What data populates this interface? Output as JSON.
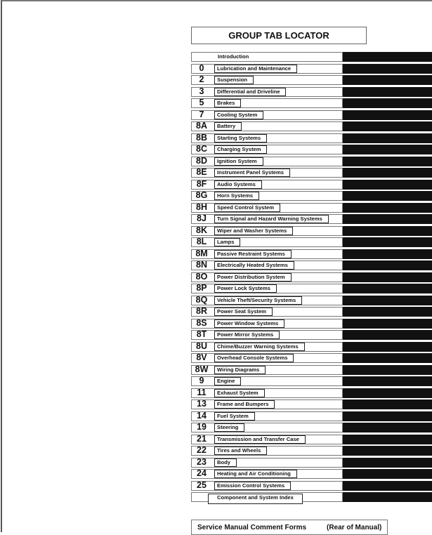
{
  "title": "GROUP TAB LOCATOR",
  "groups": [
    {
      "num": "",
      "label": "Introduction"
    },
    {
      "num": "0",
      "label": "Lubrication and Maintenance"
    },
    {
      "num": "2",
      "label": "Suspension"
    },
    {
      "num": "3",
      "label": "Differential and Driveline"
    },
    {
      "num": "5",
      "label": "Brakes"
    },
    {
      "num": "7",
      "label": "Cooling System"
    },
    {
      "num": "8A",
      "label": "Battery"
    },
    {
      "num": "8B",
      "label": "Starting Systems"
    },
    {
      "num": "8C",
      "label": "Charging System"
    },
    {
      "num": "8D",
      "label": "Ignition System"
    },
    {
      "num": "8E",
      "label": "Instrument Panel Systems"
    },
    {
      "num": "8F",
      "label": "Audio Systems"
    },
    {
      "num": "8G",
      "label": "Horn Systems"
    },
    {
      "num": "8H",
      "label": "Speed Control System"
    },
    {
      "num": "8J",
      "label": "Turn Signal and Hazard Warning Systems"
    },
    {
      "num": "8K",
      "label": "Wiper and Washer Systems"
    },
    {
      "num": "8L",
      "label": "Lamps"
    },
    {
      "num": "8M",
      "label": "Passive Restraint Systems"
    },
    {
      "num": "8N",
      "label": "Electrically Heated Systems"
    },
    {
      "num": "8O",
      "label": "Power Distribution System"
    },
    {
      "num": "8P",
      "label": "Power Lock Systems"
    },
    {
      "num": "8Q",
      "label": "Vehicle Theft/Security Systems"
    },
    {
      "num": "8R",
      "label": "Power Seat System"
    },
    {
      "num": "8S",
      "label": "Power Window Systems"
    },
    {
      "num": "8T",
      "label": "Power Mirror Systems"
    },
    {
      "num": "8U",
      "label": "Chime/Buzzer Warning Systems"
    },
    {
      "num": "8V",
      "label": "Overhead Console Systems"
    },
    {
      "num": "8W",
      "label": "Wiring Diagrams"
    },
    {
      "num": "9",
      "label": "Engine"
    },
    {
      "num": "11",
      "label": "Exhaust System"
    },
    {
      "num": "13",
      "label": "Frame and Bumpers"
    },
    {
      "num": "14",
      "label": "Fuel System"
    },
    {
      "num": "19",
      "label": "Steering"
    },
    {
      "num": "21",
      "label": "Transmission and Transfer Case"
    },
    {
      "num": "22",
      "label": "Tires and Wheels"
    },
    {
      "num": "23",
      "label": "Body"
    },
    {
      "num": "24",
      "label": "Heating and Air Conditioning"
    },
    {
      "num": "25",
      "label": "Emission Control Systems"
    },
    {
      "num": "",
      "label": "Component and System Index"
    }
  ],
  "comment_forms": {
    "label": "Service Manual Comment Forms",
    "location": "(Rear of Manual)"
  }
}
